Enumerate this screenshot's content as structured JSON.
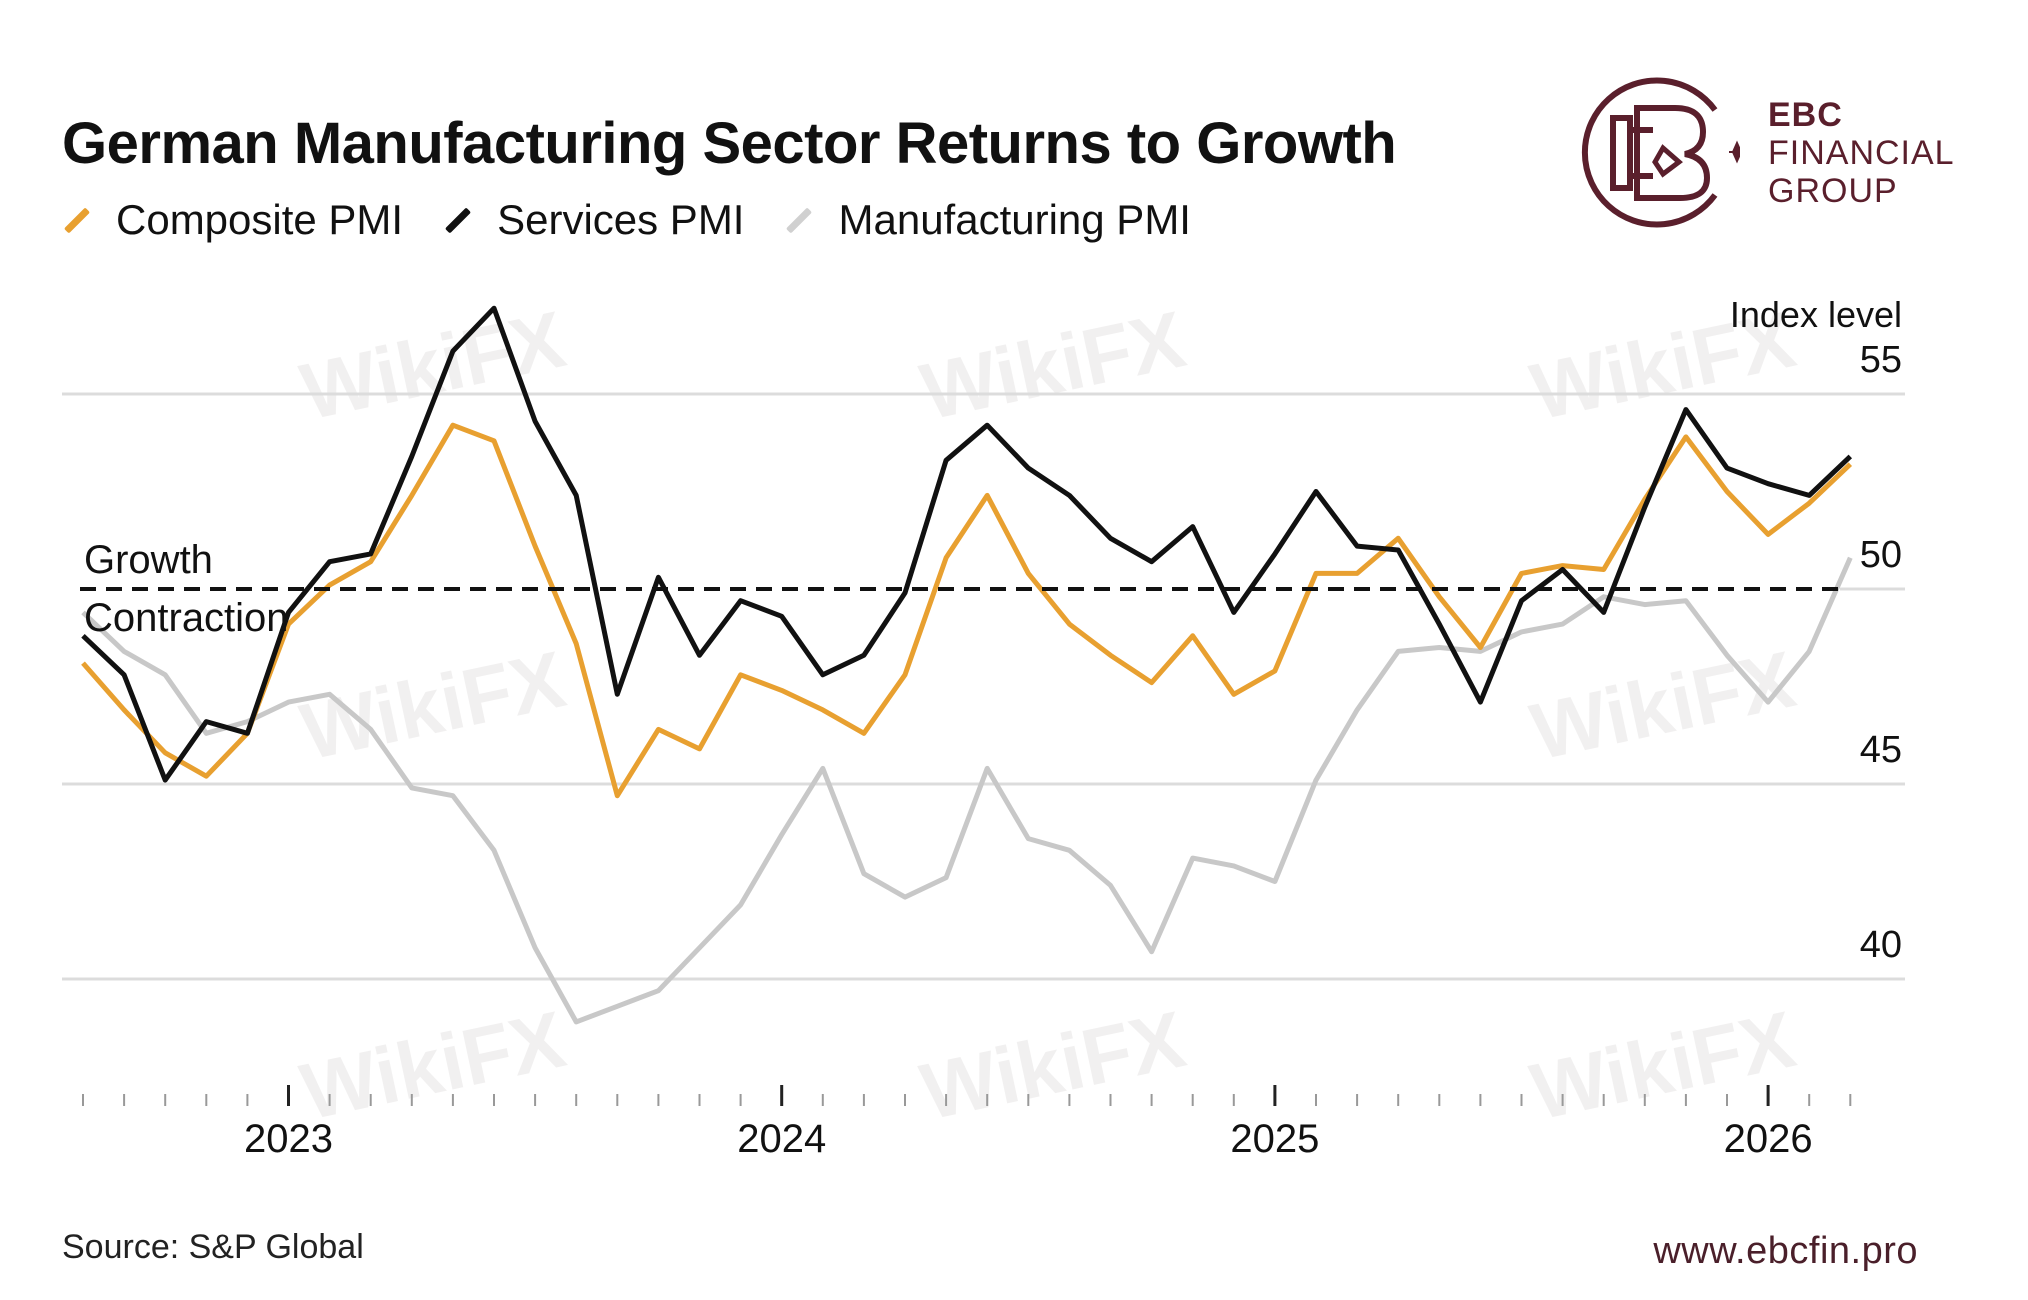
{
  "title": "German Manufacturing Sector Returns to Growth",
  "legend": [
    {
      "label": "Composite PMI",
      "color": "#e8a030"
    },
    {
      "label": "Services PMI",
      "color": "#111111"
    },
    {
      "label": "Manufacturing PMI",
      "color": "#c8c8c8"
    }
  ],
  "logo": {
    "line1": "EBC",
    "line2": "FINANCIAL",
    "line3": "GROUP",
    "color": "#5a1f2c"
  },
  "source": "Source: S&P Global",
  "url": "www.ebcfin.pro",
  "watermark": "WikiFX",
  "chart_data": {
    "type": "line",
    "title": "German Manufacturing Sector Returns to Growth",
    "ylabel": "Index level",
    "ylim": [
      38,
      58
    ],
    "yticks": [
      40,
      45,
      50,
      55
    ],
    "xticks": [
      "2023",
      "2024",
      "2025",
      "2026"
    ],
    "xtick_indices": [
      5,
      17,
      29,
      41
    ],
    "threshold": {
      "value": 50,
      "above_label": "Growth",
      "below_label": "Contraction"
    },
    "x_start": "2022-08",
    "x_end": "2026-03",
    "series": [
      {
        "name": "Composite PMI",
        "color": "#e8a030",
        "values": [
          48.1,
          46.9,
          45.8,
          45.2,
          46.3,
          49.1,
          50.1,
          50.7,
          52.4,
          54.2,
          53.8,
          51.1,
          48.6,
          44.7,
          46.4,
          45.9,
          47.8,
          47.4,
          46.9,
          46.3,
          47.8,
          50.8,
          52.4,
          50.4,
          49.1,
          48.3,
          47.6,
          48.8,
          47.3,
          47.9,
          50.4,
          50.4,
          51.3,
          49.8,
          48.5,
          50.4,
          50.6,
          50.5,
          52.3,
          53.9,
          52.5,
          51.4,
          52.2,
          53.2
        ]
      },
      {
        "name": "Services PMI",
        "color": "#111111",
        "values": [
          48.8,
          47.8,
          45.1,
          46.6,
          46.3,
          49.4,
          50.7,
          50.9,
          53.4,
          56.1,
          57.2,
          54.3,
          52.4,
          47.3,
          50.3,
          48.3,
          49.7,
          49.3,
          47.8,
          48.3,
          49.9,
          53.3,
          54.2,
          53.1,
          52.4,
          51.3,
          50.7,
          51.6,
          49.4,
          50.9,
          52.5,
          51.1,
          51.0,
          49.1,
          47.1,
          49.7,
          50.5,
          49.4,
          52.1,
          54.6,
          53.1,
          52.7,
          52.4,
          53.4
        ]
      },
      {
        "name": "Manufacturing PMI",
        "color": "#c8c8c8",
        "values": [
          49.4,
          48.4,
          47.8,
          46.3,
          46.6,
          47.1,
          47.3,
          46.4,
          44.9,
          44.7,
          43.3,
          40.8,
          38.9,
          39.3,
          39.7,
          40.8,
          41.9,
          43.7,
          45.4,
          42.7,
          42.1,
          42.6,
          45.4,
          43.6,
          43.3,
          42.4,
          40.7,
          43.1,
          42.9,
          42.5,
          45.1,
          46.9,
          48.4,
          48.5,
          48.4,
          48.9,
          49.1,
          49.8,
          49.6,
          49.7,
          48.3,
          47.1,
          48.4,
          50.8
        ]
      }
    ]
  }
}
